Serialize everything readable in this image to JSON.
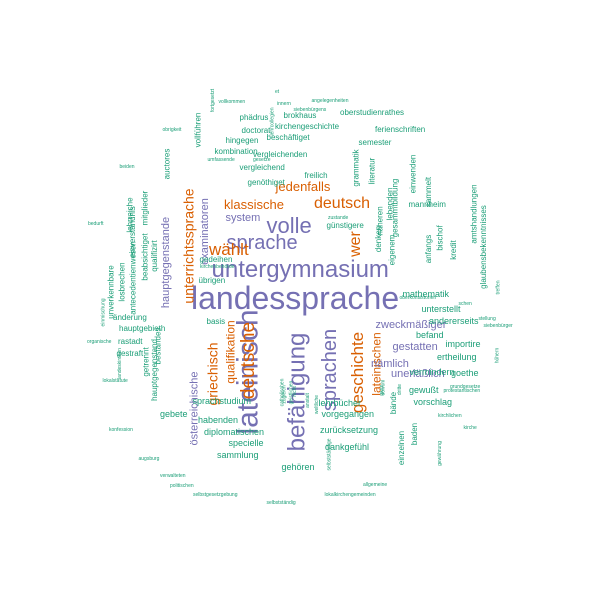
{
  "colors": {
    "purple": "#7570b3",
    "orange": "#d95f02",
    "teal": "#1b9e77"
  },
  "words": [
    {
      "text": "landessprache",
      "color": "purple"
    },
    {
      "text": "untergymnasium",
      "color": "purple"
    },
    {
      "text": "lateinisch",
      "color": "purple"
    },
    {
      "text": "befähigung",
      "color": "purple"
    },
    {
      "text": "sprache",
      "color": "purple"
    },
    {
      "text": "volle",
      "color": "purple"
    },
    {
      "text": "sprachen",
      "color": "purple"
    },
    {
      "text": "wählt",
      "color": "orange"
    },
    {
      "text": "deutsche",
      "color": "orange"
    },
    {
      "text": "geschichte",
      "color": "orange"
    },
    {
      "text": "wer",
      "color": "orange"
    },
    {
      "text": "deutsch",
      "color": "orange"
    },
    {
      "text": "griechisch",
      "color": "orange"
    },
    {
      "text": "unterrichtssprache",
      "color": "orange"
    },
    {
      "text": "jedenfalls",
      "color": "orange"
    },
    {
      "text": "klassische",
      "color": "orange"
    },
    {
      "text": "qualifikation",
      "color": "orange"
    },
    {
      "text": "lateinischen",
      "color": "orange"
    },
    {
      "text": "österreichische",
      "color": "purple"
    },
    {
      "text": "zweckmäßiger",
      "color": "purple"
    },
    {
      "text": "gestatten",
      "color": "purple"
    },
    {
      "text": "nämlich",
      "color": "purple"
    },
    {
      "text": "unerläßlich",
      "color": "purple"
    },
    {
      "text": "system",
      "color": "purple"
    },
    {
      "text": "hauptgegenstande",
      "color": "purple"
    },
    {
      "text": "examinatoren",
      "color": "purple"
    },
    {
      "text": "sprachstudium",
      "color": "teal"
    },
    {
      "text": "habenden",
      "color": "teal"
    },
    {
      "text": "gebete",
      "color": "teal"
    },
    {
      "text": "diplomatischen",
      "color": "teal"
    },
    {
      "text": "specielle",
      "color": "teal"
    },
    {
      "text": "sammlung",
      "color": "teal"
    },
    {
      "text": "gehören",
      "color": "teal"
    },
    {
      "text": "dankgefühl",
      "color": "teal"
    },
    {
      "text": "zurücksetzung",
      "color": "teal"
    },
    {
      "text": "vorgegangen",
      "color": "teal"
    },
    {
      "text": "lehrbücher",
      "color": "teal"
    },
    {
      "text": "gewußt",
      "color": "teal"
    },
    {
      "text": "vorschlag",
      "color": "teal"
    },
    {
      "text": "vermindern",
      "color": "teal"
    },
    {
      "text": "ertheilung",
      "color": "teal"
    },
    {
      "text": "goethe",
      "color": "teal"
    },
    {
      "text": "importire",
      "color": "teal"
    },
    {
      "text": "befand",
      "color": "teal"
    },
    {
      "text": "andererseits",
      "color": "teal"
    },
    {
      "text": "unterstellt",
      "color": "teal"
    },
    {
      "text": "mathematik",
      "color": "teal"
    },
    {
      "text": "übrigen",
      "color": "teal"
    },
    {
      "text": "gedeihen",
      "color": "teal"
    },
    {
      "text": "basis",
      "color": "teal"
    },
    {
      "text": "rastadt",
      "color": "teal"
    },
    {
      "text": "gestraft",
      "color": "teal"
    },
    {
      "text": "hauptgebieth",
      "color": "teal"
    },
    {
      "text": "änderung",
      "color": "teal"
    },
    {
      "text": "hauptgegenstand",
      "color": "teal"
    },
    {
      "text": "bestandes",
      "color": "teal"
    },
    {
      "text": "getrennt",
      "color": "teal"
    },
    {
      "text": "antecedentienwesen",
      "color": "teal"
    },
    {
      "text": "qualifizirt",
      "color": "teal"
    },
    {
      "text": "beabsichtiget",
      "color": "teal"
    },
    {
      "text": "losbrechen",
      "color": "teal"
    },
    {
      "text": "unverkennbare",
      "color": "teal"
    },
    {
      "text": "einverständnis",
      "color": "teal"
    },
    {
      "text": "mitglieder",
      "color": "teal"
    },
    {
      "text": "lehrreiche",
      "color": "teal"
    },
    {
      "text": "auctores",
      "color": "teal"
    },
    {
      "text": "kombination",
      "color": "teal"
    },
    {
      "text": "hingegen",
      "color": "teal"
    },
    {
      "text": "doctorat",
      "color": "teal"
    },
    {
      "text": "phädrus",
      "color": "teal"
    },
    {
      "text": "brokhaus",
      "color": "teal"
    },
    {
      "text": "kirchengeschichte",
      "color": "teal"
    },
    {
      "text": "beschäftiget",
      "color": "teal"
    },
    {
      "text": "oberstudienrathes",
      "color": "teal"
    },
    {
      "text": "ferienschriften",
      "color": "teal"
    },
    {
      "text": "semester",
      "color": "teal"
    },
    {
      "text": "vergleichenden",
      "color": "teal"
    },
    {
      "text": "vergleichend",
      "color": "teal"
    },
    {
      "text": "genöthiget",
      "color": "teal"
    },
    {
      "text": "freilich",
      "color": "teal"
    },
    {
      "text": "grammatik",
      "color": "teal"
    },
    {
      "text": "literatur",
      "color": "teal"
    },
    {
      "text": "lebenden",
      "color": "teal"
    },
    {
      "text": "näheren",
      "color": "teal"
    },
    {
      "text": "denken",
      "color": "teal"
    },
    {
      "text": "gesammtbildung",
      "color": "teal"
    },
    {
      "text": "eigenem",
      "color": "teal"
    },
    {
      "text": "anfangs",
      "color": "teal"
    },
    {
      "text": "einwenden",
      "color": "teal"
    },
    {
      "text": "sammelt",
      "color": "teal"
    },
    {
      "text": "mannheim",
      "color": "teal"
    },
    {
      "text": "bischof",
      "color": "teal"
    },
    {
      "text": "kredit",
      "color": "teal"
    },
    {
      "text": "amtshandlungen",
      "color": "teal"
    },
    {
      "text": "glaubensbekenntnisses",
      "color": "teal"
    },
    {
      "text": "vollführen",
      "color": "teal"
    },
    {
      "text": "fortgesetzt",
      "color": "teal"
    },
    {
      "text": "einzelnen",
      "color": "teal"
    },
    {
      "text": "baden",
      "color": "teal"
    },
    {
      "text": "bände",
      "color": "teal"
    },
    {
      "text": "günstigere",
      "color": "teal"
    },
    {
      "text": "zustande",
      "color": "teal"
    },
    {
      "text": "et",
      "color": "teal"
    },
    {
      "text": "innern",
      "color": "teal"
    },
    {
      "text": "angelegenheiten",
      "color": "teal"
    },
    {
      "text": "vollkommen",
      "color": "teal"
    },
    {
      "text": "siebenbürgens",
      "color": "teal"
    },
    {
      "text": "obrigkeit",
      "color": "teal"
    },
    {
      "text": "umfassende",
      "color": "teal"
    },
    {
      "text": "gesetze",
      "color": "teal"
    },
    {
      "text": "beiden",
      "color": "teal"
    },
    {
      "text": "bedurft",
      "color": "teal"
    },
    {
      "text": "kirchenbehörde",
      "color": "teal"
    },
    {
      "text": "oberkonsistorien",
      "color": "teal"
    },
    {
      "text": "schen",
      "color": "teal"
    },
    {
      "text": "treffen",
      "color": "teal"
    },
    {
      "text": "stellung",
      "color": "teal"
    },
    {
      "text": "siebenbürger",
      "color": "teal"
    },
    {
      "text": "organische",
      "color": "teal"
    },
    {
      "text": "landeskirchen",
      "color": "teal"
    },
    {
      "text": "lokalstatute",
      "color": "teal"
    },
    {
      "text": "konfession",
      "color": "teal"
    },
    {
      "text": "augsburg",
      "color": "teal"
    },
    {
      "text": "verwalteten",
      "color": "teal"
    },
    {
      "text": "politischen",
      "color": "teal"
    },
    {
      "text": "selbstgesetzgebung",
      "color": "teal"
    },
    {
      "text": "selbstständig",
      "color": "teal"
    },
    {
      "text": "lokalkirchengemeinden",
      "color": "teal"
    },
    {
      "text": "allgemeine",
      "color": "teal"
    },
    {
      "text": "kirche",
      "color": "teal"
    },
    {
      "text": "protestantischen",
      "color": "teal"
    },
    {
      "text": "grundgesetze",
      "color": "teal"
    },
    {
      "text": "kirchlichen",
      "color": "teal"
    },
    {
      "text": "höhern",
      "color": "teal"
    },
    {
      "text": "einmischung",
      "color": "teal"
    },
    {
      "text": "gewährung",
      "color": "teal"
    },
    {
      "text": "lehrcollegien",
      "color": "teal"
    },
    {
      "text": "selbstständige",
      "color": "teal"
    },
    {
      "text": "catholischen",
      "color": "teal"
    },
    {
      "text": "zugleich",
      "color": "teal"
    },
    {
      "text": "nicht",
      "color": "teal"
    },
    {
      "text": "sowohl",
      "color": "teal"
    },
    {
      "text": "dritte",
      "color": "teal"
    },
    {
      "text": "geistlichen",
      "color": "teal"
    },
    {
      "text": "ganz",
      "color": "teal"
    },
    {
      "text": "anstalt",
      "color": "teal"
    },
    {
      "text": "weltliche",
      "color": "teal"
    },
    {
      "text": "vorzug",
      "color": "teal"
    },
    {
      "text": "vormals",
      "color": "teal"
    },
    {
      "text": "kathol",
      "color": "teal"
    }
  ]
}
